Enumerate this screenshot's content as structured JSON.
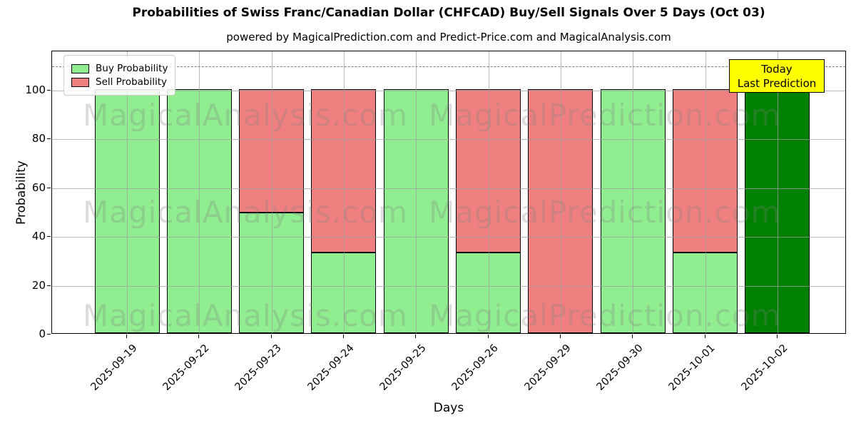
{
  "title": "Probabilities of Swiss Franc/Canadian Dollar (CHFCAD) Buy/Sell Signals Over 5 Days (Oct 03)",
  "subtitle": "powered by MagicalPrediction.com and Predict-Price.com and MagicalAnalysis.com",
  "legend": {
    "buy_label": "Buy Probability",
    "sell_label": "Sell Probability"
  },
  "today_box": {
    "line1": "Today",
    "line2": "Last Prediction",
    "bg_color": "#FFFF00"
  },
  "watermarks": {
    "left_text": "MagicalAnalysis.com",
    "right_text": "MagicalPrediction.com"
  },
  "axes": {
    "ylabel": "Probability",
    "xlabel": "Days",
    "yticks": [
      0,
      20,
      40,
      60,
      80,
      100
    ],
    "ylim": [
      0,
      116
    ],
    "dashed_line_y": 110,
    "grid": true
  },
  "colors": {
    "buy": "#90EE90",
    "sell": "#F08080",
    "today_bar": "#008000",
    "bar_edge": "#000000",
    "dashed_line": "#7F7F7F"
  },
  "chart_data": {
    "type": "bar",
    "stacked": true,
    "title": "Probabilities of Swiss Franc/Canadian Dollar (CHFCAD) Buy/Sell Signals Over 5 Days (Oct 03)",
    "xlabel": "Days",
    "ylabel": "Probability",
    "ylim": [
      0,
      116
    ],
    "categories": [
      "2025-09-19",
      "2025-09-22",
      "2025-09-23",
      "2025-09-24",
      "2025-09-25",
      "2025-09-26",
      "2025-09-29",
      "2025-09-30",
      "2025-10-01",
      "2025-10-02"
    ],
    "series": [
      {
        "name": "Buy Probability",
        "color": "#90EE90",
        "values": [
          100,
          100,
          49.5,
          33,
          100,
          33,
          0,
          100,
          33,
          100
        ]
      },
      {
        "name": "Sell Probability",
        "color": "#F08080",
        "values": [
          0,
          0,
          50.5,
          67,
          0,
          67,
          100,
          0,
          67,
          0
        ]
      }
    ],
    "today_bar": {
      "category": "2025-10-02",
      "index": 9,
      "color": "#008000",
      "value": 100
    },
    "annotation_line": {
      "y": 110,
      "style": "dashed"
    },
    "legend_position": "upper-left"
  }
}
